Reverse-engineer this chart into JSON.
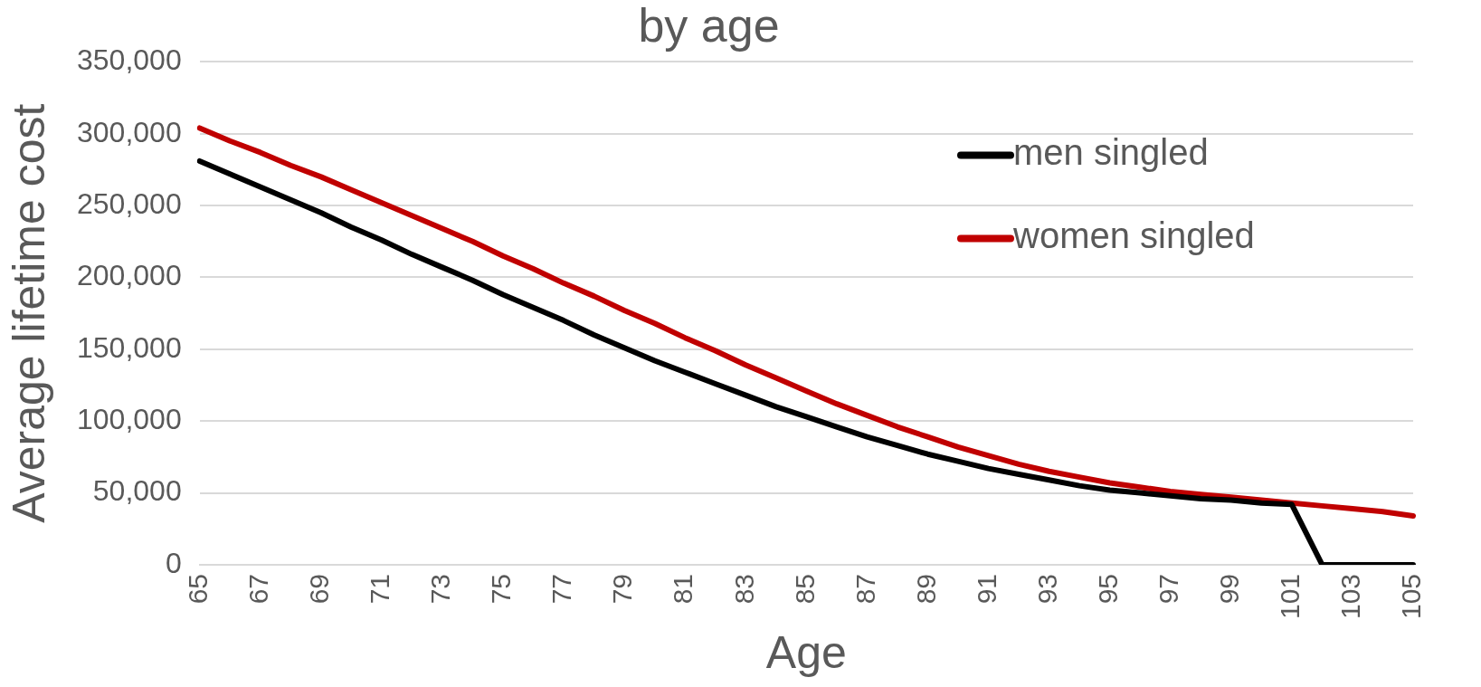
{
  "chart_data": {
    "type": "line",
    "title": "by age",
    "xlabel": "Age",
    "ylabel": "Average lifetime cost",
    "categories": [
      "65",
      null,
      "67",
      null,
      "69",
      null,
      "71",
      null,
      "73",
      null,
      "75",
      null,
      "77",
      null,
      "79",
      null,
      "81",
      null,
      "83",
      null,
      "85",
      null,
      "87",
      null,
      "89",
      null,
      "91",
      null,
      "93",
      null,
      "95",
      null,
      "97",
      null,
      "99",
      null,
      "101",
      null,
      "103",
      null,
      "105"
    ],
    "series": [
      {
        "name": "men singled",
        "color": "#000000",
        "values": [
          281000,
          272000,
          263000,
          254000,
          245000,
          235000,
          226000,
          216000,
          207000,
          198000,
          188000,
          179000,
          170000,
          160000,
          151000,
          142000,
          134000,
          126000,
          118000,
          110000,
          103000,
          96000,
          89000,
          83000,
          77000,
          72000,
          67000,
          63000,
          59000,
          55000,
          52000,
          50000,
          48000,
          46000,
          45000,
          43000,
          42000,
          0,
          0,
          0,
          0
        ]
      },
      {
        "name": "women singled",
        "color": "#c00000",
        "values": [
          304000,
          295000,
          287000,
          278000,
          270000,
          261000,
          252000,
          243000,
          234000,
          225000,
          215000,
          206000,
          196000,
          187000,
          177000,
          168000,
          158000,
          149000,
          139000,
          130000,
          121000,
          112000,
          104000,
          96000,
          89000,
          82000,
          76000,
          70000,
          65000,
          61000,
          57000,
          54000,
          51000,
          49000,
          47000,
          45000,
          43000,
          41000,
          39000,
          37000,
          34000
        ]
      }
    ],
    "ylim": [
      0,
      350000
    ],
    "yticks": [
      0,
      {
        "value": 50000,
        "label": "50,000"
      },
      {
        "value": 100000,
        "label": "100,000"
      },
      {
        "value": 150000,
        "label": "150,000"
      },
      {
        "value": 200000,
        "label": "200,000"
      },
      {
        "value": 250000,
        "label": "250,000"
      },
      {
        "value": 300000,
        "label": "300,000"
      },
      {
        "value": 350000,
        "label": "350,000"
      }
    ],
    "grid": "y",
    "legend": "top right",
    "marker": "none",
    "line_style": "solid"
  }
}
